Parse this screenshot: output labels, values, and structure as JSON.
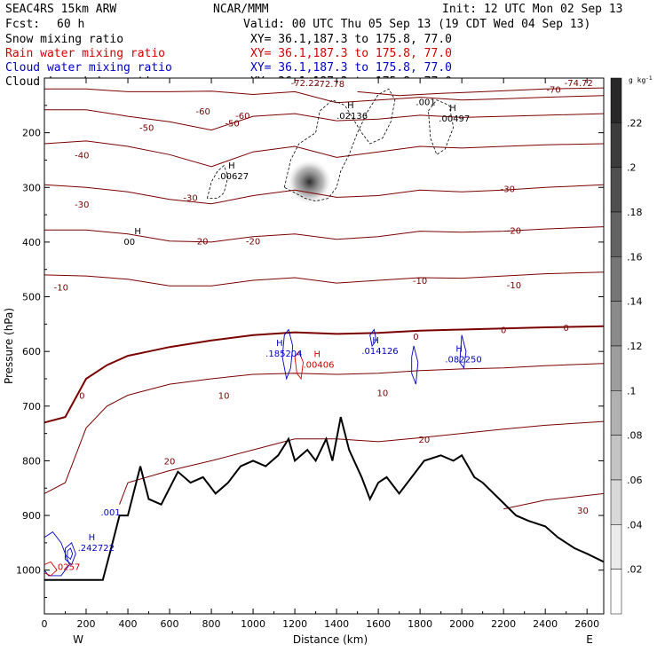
{
  "header": {
    "model": "SEAC4RS 15km ARW",
    "org": "NCAR/MMM",
    "init": "Init: 12 UTC Mon 02 Sep 13",
    "fcst_label": "Fcst:",
    "fcst_value": "60 h",
    "valid": "Valid: 00 UTC Thu 05 Sep 13 (19 CDT Wed 04 Sep 13)"
  },
  "fields": [
    {
      "label": "Snow mixing ratio",
      "xy": "XY=  36.1,187.3 to 175.8, 77.0",
      "color": "#000000"
    },
    {
      "label": "Rain water mixing ratio",
      "xy": "XY=  36.1,187.3 to 175.8, 77.0",
      "color": "#d40000"
    },
    {
      "label": "Cloud water mixing ratio",
      "xy": "XY=  36.1,187.3 to 175.8, 77.0",
      "color": "#0000c8"
    },
    {
      "label": "Cloud ice mixing ratio",
      "xy": "XY=  36.1,187.3 to 175.8, 77.0",
      "color": "#000000"
    }
  ],
  "colorbar": {
    "unit": "g kg",
    "unit_exp": "-1",
    "labels": [
      ".22",
      ".2",
      ".18",
      ".16",
      ".14",
      ".12",
      ".1",
      ".08",
      ".06",
      ".04",
      ".02"
    ]
  },
  "axes": {
    "xlabel": "Distance (km)",
    "ylabel": "Pressure (hPa)",
    "west": "W",
    "east": "E"
  },
  "chart_data": {
    "type": "contour",
    "x_ticks": [
      0,
      200,
      400,
      600,
      800,
      1000,
      1200,
      1400,
      1600,
      1800,
      2000,
      2200,
      2400,
      2600
    ],
    "y_ticks": [
      200,
      300,
      400,
      500,
      600,
      700,
      800,
      900,
      1000
    ],
    "xlim": [
      0,
      2680
    ],
    "ylim": [
      1080,
      100
    ],
    "temperature_contours": [
      -70,
      -60,
      -50,
      -40,
      -30,
      -20,
      -10,
      0,
      10,
      20,
      30
    ],
    "temperature_labels": [
      "-72.78",
      "-74.72",
      "-72.22",
      "-70",
      "-60",
      "-60",
      "-50",
      "-50",
      "-40",
      "-30",
      "-30",
      "-30",
      "-20",
      "-20",
      "-20",
      "-10",
      "-10",
      "-10",
      "0",
      "0",
      "0",
      "0",
      "10",
      "10",
      "20",
      "20",
      "30"
    ],
    "maxima_labels": [
      {
        "label": "H",
        "value": ".00627",
        "color": "#000000"
      },
      {
        "label": "H",
        "value": "00",
        "color": "#000000"
      },
      {
        "label": "H",
        "value": ".02136",
        "color": "#000000"
      },
      {
        "label": "H",
        "value": ".00497",
        "color": "#000000"
      },
      {
        "label": "",
        "value": ".001",
        "color": "#000000"
      },
      {
        "label": "H",
        "value": ".185204",
        "color": "#0000c8"
      },
      {
        "label": "H",
        "value": ".00406",
        "color": "#d40000"
      },
      {
        "label": "H",
        "value": ".014126",
        "color": "#0000c8"
      },
      {
        "label": "H",
        "value": ".082250",
        "color": "#0000c8"
      },
      {
        "label": "H",
        "value": ".242722",
        "color": "#0000c8"
      },
      {
        "label": "",
        "value": ".001",
        "color": "#0000c8"
      },
      {
        "label": "",
        "value": ".0257",
        "color": "#d40000"
      }
    ],
    "snow_max": {
      "x_km": 1270,
      "p_hPa": 290,
      "value": 0.12
    },
    "terrain_km_hPa": [
      [
        0,
        1018
      ],
      [
        280,
        1018
      ],
      [
        320,
        960
      ],
      [
        360,
        900
      ],
      [
        400,
        900
      ],
      [
        460,
        810
      ],
      [
        500,
        870
      ],
      [
        560,
        880
      ],
      [
        640,
        820
      ],
      [
        700,
        840
      ],
      [
        760,
        830
      ],
      [
        820,
        860
      ],
      [
        880,
        840
      ],
      [
        940,
        810
      ],
      [
        1000,
        800
      ],
      [
        1060,
        810
      ],
      [
        1120,
        790
      ],
      [
        1170,
        760
      ],
      [
        1200,
        800
      ],
      [
        1260,
        780
      ],
      [
        1300,
        800
      ],
      [
        1350,
        760
      ],
      [
        1380,
        800
      ],
      [
        1420,
        720
      ],
      [
        1460,
        780
      ],
      [
        1520,
        830
      ],
      [
        1560,
        870
      ],
      [
        1600,
        840
      ],
      [
        1640,
        830
      ],
      [
        1700,
        860
      ],
      [
        1760,
        830
      ],
      [
        1820,
        800
      ],
      [
        1900,
        790
      ],
      [
        1960,
        800
      ],
      [
        2000,
        790
      ],
      [
        2060,
        830
      ],
      [
        2100,
        840
      ],
      [
        2180,
        870
      ],
      [
        2260,
        900
      ],
      [
        2320,
        910
      ],
      [
        2400,
        920
      ],
      [
        2460,
        940
      ],
      [
        2540,
        960
      ],
      [
        2600,
        970
      ],
      [
        2680,
        985
      ]
    ],
    "isotherms": [
      {
        "t": -70,
        "pts": [
          [
            1500,
            125
          ],
          [
            1700,
            132
          ],
          [
            1900,
            128
          ],
          [
            2100,
            125
          ],
          [
            2400,
            120
          ],
          [
            2680,
            118
          ]
        ]
      },
      {
        "t": -60,
        "pts": [
          [
            0,
            120
          ],
          [
            200,
            120
          ],
          [
            400,
            125
          ],
          [
            600,
            125
          ],
          [
            800,
            124
          ],
          [
            1000,
            130
          ],
          [
            1200,
            125
          ],
          [
            1400,
            145
          ],
          [
            1600,
            140
          ],
          [
            1800,
            135
          ],
          [
            2000,
            140
          ],
          [
            2200,
            138
          ],
          [
            2400,
            135
          ],
          [
            2680,
            132
          ]
        ]
      },
      {
        "t": -50,
        "pts": [
          [
            0,
            158
          ],
          [
            200,
            158
          ],
          [
            400,
            170
          ],
          [
            600,
            180
          ],
          [
            800,
            195
          ],
          [
            1000,
            170
          ],
          [
            1200,
            165
          ],
          [
            1400,
            178
          ],
          [
            1600,
            175
          ],
          [
            1800,
            168
          ],
          [
            2000,
            172
          ],
          [
            2200,
            170
          ],
          [
            2400,
            168
          ],
          [
            2680,
            165
          ]
        ]
      },
      {
        "t": -40,
        "pts": [
          [
            0,
            220
          ],
          [
            200,
            215
          ],
          [
            400,
            225
          ],
          [
            600,
            240
          ],
          [
            800,
            262
          ],
          [
            1000,
            235
          ],
          [
            1200,
            225
          ],
          [
            1400,
            245
          ],
          [
            1600,
            235
          ],
          [
            1800,
            225
          ],
          [
            2000,
            228
          ],
          [
            2200,
            225
          ],
          [
            2400,
            222
          ],
          [
            2680,
            220
          ]
        ]
      },
      {
        "t": -30,
        "pts": [
          [
            0,
            295
          ],
          [
            200,
            300
          ],
          [
            400,
            308
          ],
          [
            600,
            322
          ],
          [
            800,
            330
          ],
          [
            1000,
            315
          ],
          [
            1200,
            305
          ],
          [
            1400,
            318
          ],
          [
            1600,
            315
          ],
          [
            1800,
            305
          ],
          [
            2000,
            308
          ],
          [
            2200,
            305
          ],
          [
            2400,
            300
          ],
          [
            2680,
            295
          ]
        ]
      },
      {
        "t": -20,
        "pts": [
          [
            0,
            378
          ],
          [
            200,
            378
          ],
          [
            400,
            385
          ],
          [
            600,
            398
          ],
          [
            800,
            400
          ],
          [
            1000,
            390
          ],
          [
            1200,
            385
          ],
          [
            1400,
            395
          ],
          [
            1600,
            390
          ],
          [
            1800,
            380
          ],
          [
            2000,
            382
          ],
          [
            2200,
            380
          ],
          [
            2400,
            376
          ],
          [
            2680,
            372
          ]
        ]
      },
      {
        "t": -10,
        "pts": [
          [
            0,
            460
          ],
          [
            200,
            462
          ],
          [
            400,
            468
          ],
          [
            600,
            480
          ],
          [
            800,
            480
          ],
          [
            1000,
            470
          ],
          [
            1200,
            465
          ],
          [
            1400,
            475
          ],
          [
            1600,
            470
          ],
          [
            1800,
            465
          ],
          [
            2000,
            466
          ],
          [
            2200,
            462
          ],
          [
            2400,
            458
          ],
          [
            2680,
            455
          ]
        ]
      },
      {
        "t": 0,
        "pts": [
          [
            0,
            730
          ],
          [
            100,
            720
          ],
          [
            200,
            650
          ],
          [
            300,
            625
          ],
          [
            400,
            608
          ],
          [
            500,
            600
          ],
          [
            600,
            592
          ],
          [
            800,
            580
          ],
          [
            1000,
            570
          ],
          [
            1200,
            565
          ],
          [
            1400,
            568
          ],
          [
            1600,
            566
          ],
          [
            1800,
            562
          ],
          [
            2000,
            560
          ],
          [
            2200,
            558
          ],
          [
            2400,
            556
          ],
          [
            2680,
            554
          ]
        ]
      },
      {
        "t": 10,
        "pts": [
          [
            0,
            860
          ],
          [
            100,
            840
          ],
          [
            200,
            740
          ],
          [
            300,
            700
          ],
          [
            400,
            680
          ],
          [
            600,
            660
          ],
          [
            800,
            650
          ],
          [
            1000,
            642
          ],
          [
            1200,
            640
          ],
          [
            1400,
            642
          ],
          [
            1600,
            640
          ],
          [
            1800,
            635
          ],
          [
            2000,
            632
          ],
          [
            2200,
            630
          ],
          [
            2400,
            626
          ],
          [
            2680,
            622
          ]
        ]
      },
      {
        "t": 20,
        "pts": [
          [
            360,
            880
          ],
          [
            400,
            840
          ],
          [
            600,
            818
          ],
          [
            800,
            800
          ],
          [
            1000,
            780
          ],
          [
            1200,
            760
          ],
          [
            1400,
            760
          ],
          [
            1600,
            765
          ],
          [
            1800,
            758
          ],
          [
            2000,
            750
          ],
          [
            2200,
            742
          ],
          [
            2400,
            735
          ],
          [
            2680,
            728
          ]
        ]
      },
      {
        "t": 30,
        "pts": [
          [
            2200,
            888
          ],
          [
            2400,
            872
          ],
          [
            2680,
            860
          ]
        ]
      }
    ]
  }
}
